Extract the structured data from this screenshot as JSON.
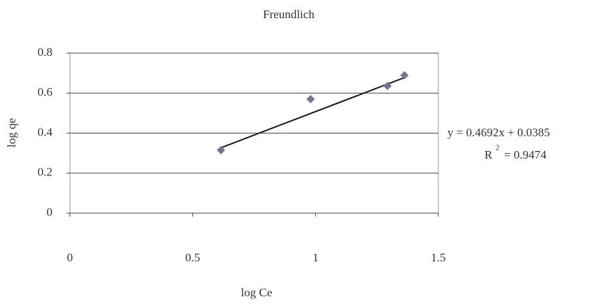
{
  "chart_data": {
    "type": "scatter",
    "title": "Freundlich",
    "x_label": "log Ce",
    "y_label": "log qe",
    "series": [
      {
        "name": null,
        "color": "#7a7390",
        "x": [
          0.615,
          0.98,
          1.293,
          1.362
        ],
        "values": [
          0.315,
          0.57,
          0.636,
          0.689
        ]
      }
    ],
    "trendline": {
      "slope": 0.4692,
      "intercept": 0.0385,
      "color": "#1a1a1a",
      "equation": "y = 0.4692x + 0.0385",
      "r2_symbol": "R",
      "r2_exponent": "2",
      "r2_text": "= 0.9474"
    },
    "xlim": [
      0,
      1.5
    ],
    "xticks": [
      0,
      0.5,
      1,
      1.5
    ],
    "ylim": [
      0,
      0.8
    ],
    "yticks": [
      0,
      0.2,
      0.4,
      0.6,
      0.8
    ],
    "grid": true
  }
}
